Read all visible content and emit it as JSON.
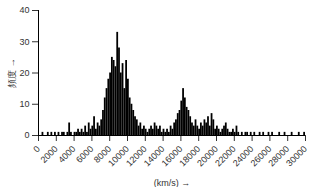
{
  "chart_data": {
    "type": "histogram",
    "x_label": "(km/s)",
    "y_label": "頻度",
    "color": "#000000",
    "bins": [
      0,
      200,
      400,
      600,
      800,
      1000,
      1200,
      1400,
      1600,
      1800,
      2000,
      2200,
      2400,
      2600,
      2800,
      3000,
      3200,
      3400,
      3600,
      3800,
      4000,
      4200,
      4400,
      4600,
      4800,
      5000,
      5200,
      5400,
      5600,
      5800,
      6000,
      6200,
      6400,
      6600,
      6800,
      7000,
      7200,
      7400,
      7600,
      7800,
      8000,
      8200,
      8400,
      8600,
      8800,
      9000,
      9200,
      9400,
      9600,
      9800,
      10000,
      10200,
      10400,
      10600,
      10800,
      11000,
      11200,
      11400,
      11600,
      11800,
      12000,
      12200,
      12400,
      12600,
      12800,
      13000,
      13200,
      13400,
      13600,
      13800,
      14000,
      14200,
      14400,
      14600,
      14800,
      15000,
      15200,
      15400,
      15600,
      15800,
      16000,
      16200,
      16400,
      16600,
      16800,
      17000,
      17200,
      17400,
      17600,
      17800,
      18000,
      18200,
      18400,
      18600,
      18800,
      19000,
      19200,
      19400,
      19600,
      19800,
      20000,
      20200,
      20400,
      20600,
      20800,
      21000,
      21200,
      21400,
      21600,
      21800,
      22000,
      22200,
      22400,
      22600,
      22800,
      23000,
      23200,
      23400,
      23600,
      23800,
      24000,
      24200,
      24400,
      24600,
      24800,
      25000,
      25200,
      25400,
      25600,
      25800,
      26000,
      26200,
      26400,
      26600,
      26800,
      27000,
      27200,
      27400,
      27600,
      27800,
      28000,
      28200,
      28400,
      28600,
      28800,
      29000,
      29200,
      29400,
      29600,
      29800,
      30000
    ],
    "values": [
      0,
      0,
      1,
      0,
      0,
      1,
      0,
      1,
      0,
      1,
      0,
      1,
      0,
      1,
      1,
      0,
      1,
      4,
      1,
      0,
      1,
      1,
      2,
      1,
      2,
      1,
      3,
      1,
      4,
      2,
      3,
      6,
      2,
      4,
      3,
      5,
      8,
      12,
      15,
      18,
      20,
      25,
      24,
      22,
      33,
      28,
      20,
      23,
      15,
      24,
      18,
      12,
      10,
      8,
      6,
      5,
      3,
      4,
      2,
      3,
      2,
      1,
      2,
      3,
      2,
      4,
      3,
      2,
      3,
      1,
      2,
      1,
      2,
      1,
      3,
      2,
      4,
      5,
      7,
      8,
      11,
      15,
      12,
      9,
      8,
      6,
      4,
      3,
      5,
      3,
      2,
      4,
      3,
      5,
      4,
      6,
      3,
      7,
      5,
      2,
      3,
      2,
      1,
      2,
      3,
      4,
      2,
      1,
      1,
      2,
      1,
      3,
      1,
      0,
      1,
      0,
      1,
      1,
      0,
      1,
      0,
      1,
      0,
      0,
      1,
      0,
      1,
      0,
      0,
      1,
      0,
      1,
      0,
      0,
      0,
      1,
      0,
      0,
      1,
      0,
      0,
      0,
      1,
      0,
      0,
      0,
      1,
      0,
      0,
      1
    ],
    "xlim": [
      0,
      30000
    ],
    "xticks": [
      0,
      2000,
      4000,
      6000,
      8000,
      10000,
      12000,
      14000,
      16000,
      18000,
      20000,
      22000,
      24000,
      26000,
      28000,
      30000
    ],
    "ylim": [
      0,
      40
    ],
    "yticks": [
      0,
      10,
      20,
      30,
      40
    ],
    "grid": false
  }
}
